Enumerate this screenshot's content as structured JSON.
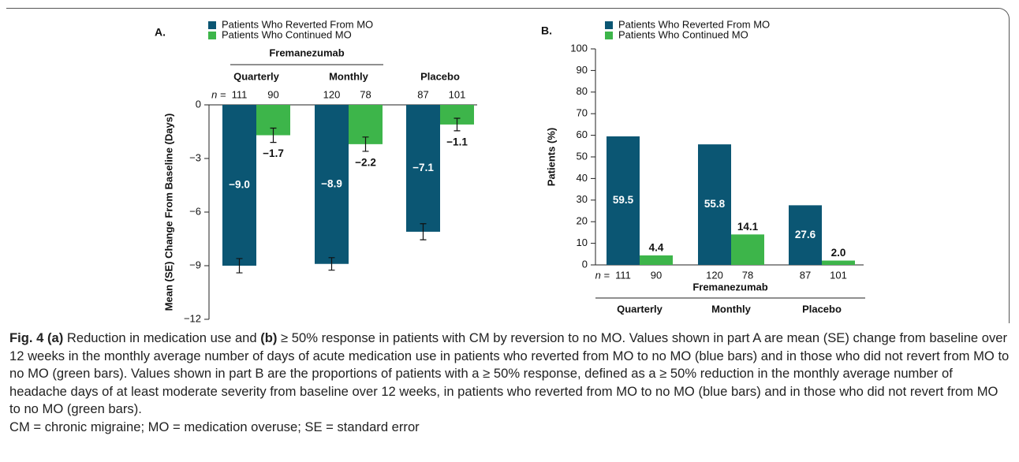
{
  "chart_data": [
    {
      "type": "bar",
      "panel": "A.",
      "group_title": "Fremanezumab",
      "categories": [
        "Quarterly",
        "Monthly",
        "Placebo"
      ],
      "n_label": "n =",
      "ylabel": "Mean (SE) Change From Baseline (Days)",
      "ylim": [
        -12,
        0
      ],
      "yticks": [
        {
          "value": -12,
          "label": "−12"
        },
        {
          "value": -9,
          "label": "−9"
        },
        {
          "value": -6,
          "label": "−6"
        },
        {
          "value": -3,
          "label": "−3"
        },
        0
      ],
      "series": [
        {
          "name": "Patients Who Reverted From MO",
          "color": "#0b5673",
          "values": [
            -9.0,
            -8.9,
            -7.1
          ],
          "value_labels": [
            "−9.0",
            "−8.9",
            "−7.1"
          ],
          "errors": [
            0.4,
            0.35,
            0.45
          ],
          "n": [
            111,
            120,
            87
          ]
        },
        {
          "name": "Patients Who Continued MO",
          "color": "#3db54a",
          "values": [
            -1.7,
            -2.2,
            -1.1
          ],
          "value_labels": [
            "−1.7",
            "−2.2",
            "−1.1"
          ],
          "errors": [
            0.4,
            0.4,
            0.35
          ],
          "n": [
            90,
            78,
            101
          ]
        }
      ]
    },
    {
      "type": "bar",
      "panel": "B.",
      "group_title": "Fremanezumab",
      "categories": [
        "Quarterly",
        "Monthly",
        "Placebo"
      ],
      "n_label": "n =",
      "ylabel": "Patients (%)",
      "ylim": [
        0,
        100
      ],
      "yticks": [
        0,
        10,
        20,
        30,
        40,
        50,
        60,
        70,
        80,
        90,
        100
      ],
      "series": [
        {
          "name": "Patients Who Reverted From MO",
          "color": "#0b5673",
          "values": [
            59.5,
            55.8,
            27.6
          ],
          "value_labels": [
            "59.5",
            "55.8",
            "27.6"
          ],
          "n": [
            111,
            120,
            87
          ]
        },
        {
          "name": "Patients Who Continued MO",
          "color": "#3db54a",
          "values": [
            4.4,
            14.1,
            2.0
          ],
          "value_labels": [
            "4.4",
            "14.1",
            "2.0"
          ],
          "n": [
            90,
            78,
            101
          ]
        }
      ]
    }
  ],
  "caption": {
    "segments": [
      {
        "text": "Fig. 4",
        "bold": true
      },
      {
        "text": " "
      },
      {
        "text": "(a)",
        "bold": true
      },
      {
        "text": " Reduction in medication use and "
      },
      {
        "text": "(b)",
        "bold": true
      },
      {
        "text": " ≥ 50% response in patients with CM by reversion to no MO. Values shown in part A are mean (SE) change from baseline over 12 weeks in the monthly average number of days of acute medication use in patients who reverted from MO to no MO (blue bars) and in those who did not revert from MO to no MO (green bars). Values shown in part B are the proportions of patients with a ≥ 50% response, defined as a ≥ 50% reduction in the monthly average number of headache days of at least moderate severity from baseline over 12 weeks, in patients who reverted from MO to no MO (blue bars) and in those who did not revert from MO to no MO (green bars)."
      }
    ],
    "abbreviations": "CM = chronic migraine; MO = medication overuse; SE = standard error"
  }
}
